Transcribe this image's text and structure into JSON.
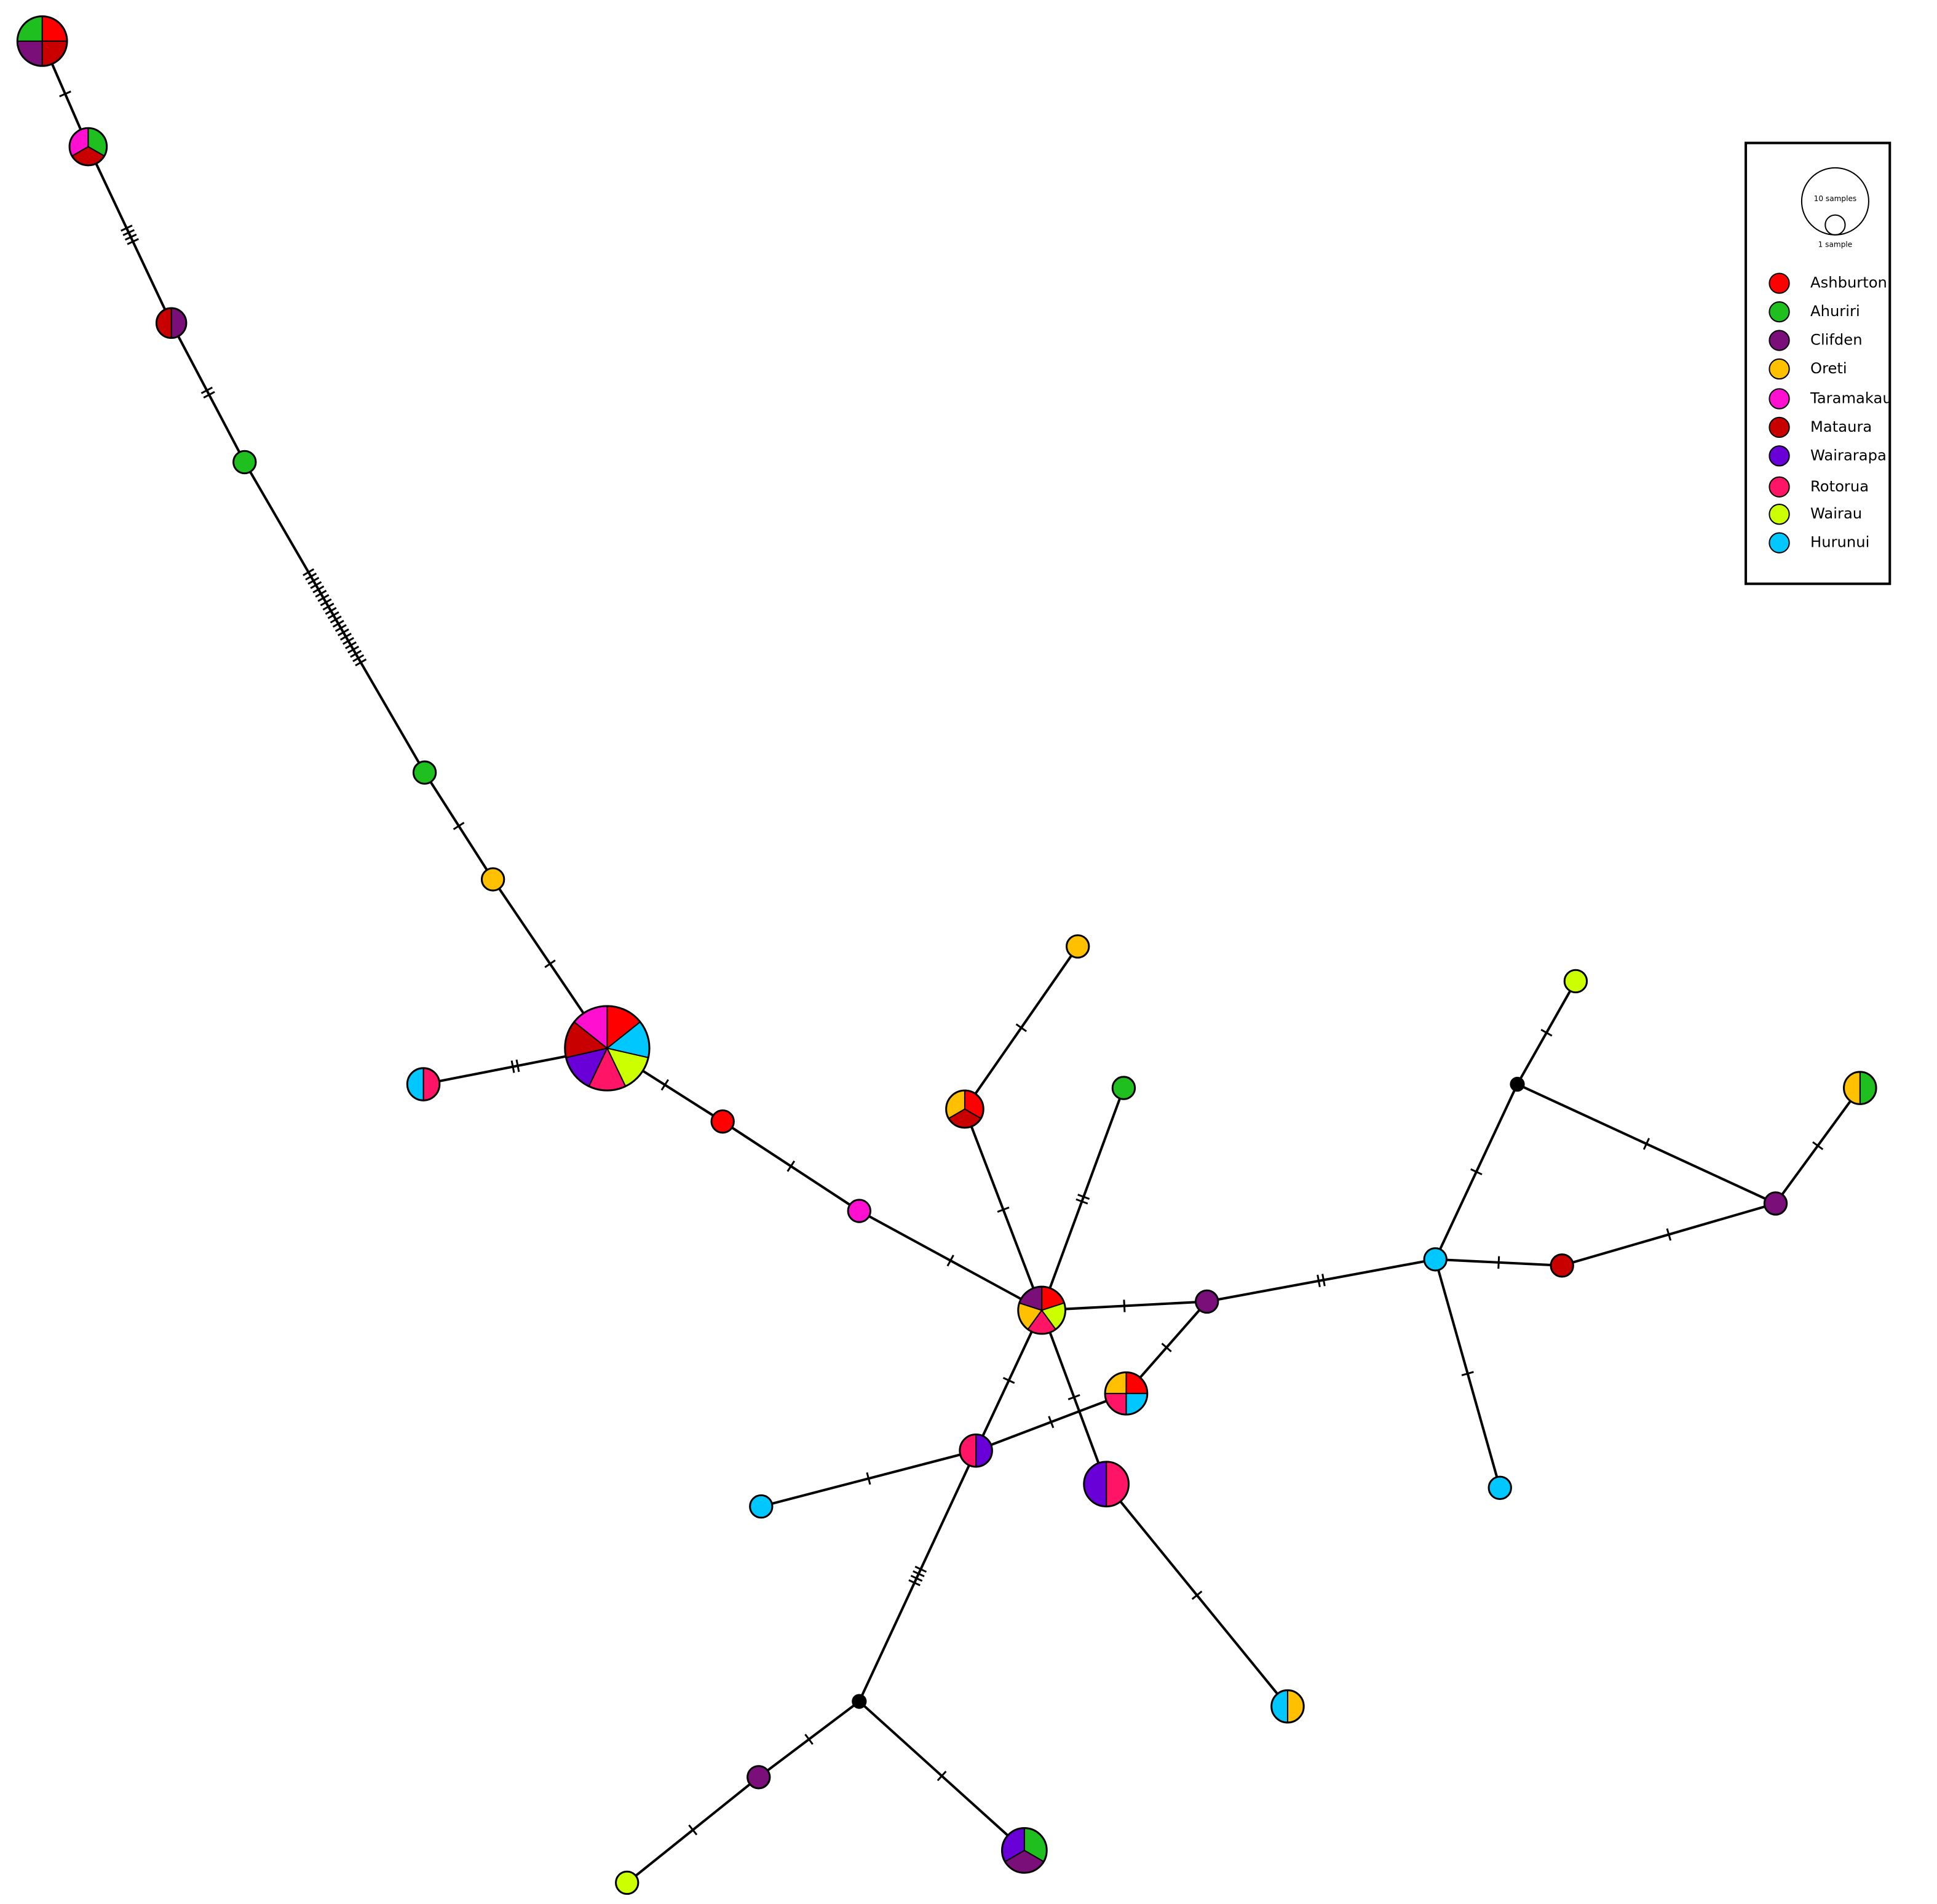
{
  "legend": {
    "scale": {
      "large": "10 samples",
      "small": "1 sample"
    },
    "items": [
      {
        "name": "Ashburton",
        "color": "#ff0000"
      },
      {
        "name": "Ahuriri",
        "color": "#1fbf1f"
      },
      {
        "name": "Clifden",
        "color": "#7a0f7a"
      },
      {
        "name": "Oreti",
        "color": "#ffc000"
      },
      {
        "name": "Taramakau",
        "color": "#ff10d0"
      },
      {
        "name": "Mataura",
        "color": "#c80000"
      },
      {
        "name": "Wairarapa",
        "color": "#6a00d8"
      },
      {
        "name": "Rotorua",
        "color": "#ff1466"
      },
      {
        "name": "Wairau",
        "color": "#ccff00"
      },
      {
        "name": "Hurunui",
        "color": "#00c8ff"
      }
    ]
  }
}
